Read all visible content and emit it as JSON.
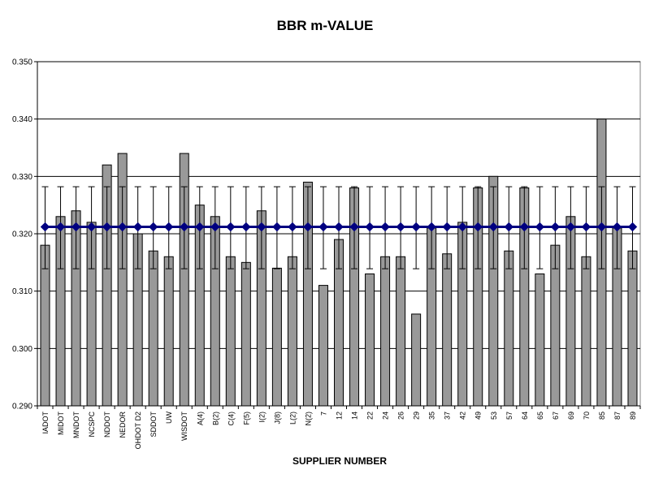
{
  "chart_data": {
    "type": "bar",
    "title": "BBR m-VALUE",
    "xlabel": "SUPPLIER NUMBER",
    "ylabel": "",
    "ylim": [
      0.29,
      0.35
    ],
    "yticks": [
      "0.290",
      "0.300",
      "0.310",
      "0.320",
      "0.330",
      "0.340",
      "0.350"
    ],
    "grid": true,
    "legend": "none",
    "categories": [
      "IADOT",
      "MIDOT",
      "MNDOT",
      "NCSPC",
      "NDDOT",
      "NEDOR",
      "OHDOT D2",
      "SDDOT",
      "UW",
      "WISDOT",
      "A(4)",
      "B(2)",
      "C(4)",
      "F(5)",
      "I(2)",
      "J(8)",
      "L(2)",
      "N(2)",
      "7",
      "12",
      "14",
      "22",
      "24",
      "26",
      "29",
      "35",
      "37",
      "42",
      "49",
      "53",
      "57",
      "64",
      "65",
      "67",
      "69",
      "70",
      "85",
      "87",
      "89"
    ],
    "series": [
      {
        "type": "bar",
        "color": "#999999",
        "values": [
          0.318,
          0.323,
          0.324,
          0.322,
          0.332,
          0.334,
          0.32,
          0.317,
          0.316,
          0.334,
          0.325,
          0.323,
          0.316,
          0.315,
          0.324,
          0.314,
          0.316,
          0.329,
          0.311,
          0.319,
          0.328,
          0.313,
          0.316,
          0.316,
          0.306,
          0.321,
          0.3165,
          0.322,
          0.328,
          0.33,
          0.317,
          0.328,
          0.313,
          0.318,
          0.323,
          0.316,
          0.34,
          0.321,
          0.317
        ]
      },
      {
        "type": "line",
        "marker": "diamond",
        "color": "#000080",
        "value": 0.3212,
        "error_upper": 0.3282,
        "error_lower": 0.3139
      }
    ]
  }
}
